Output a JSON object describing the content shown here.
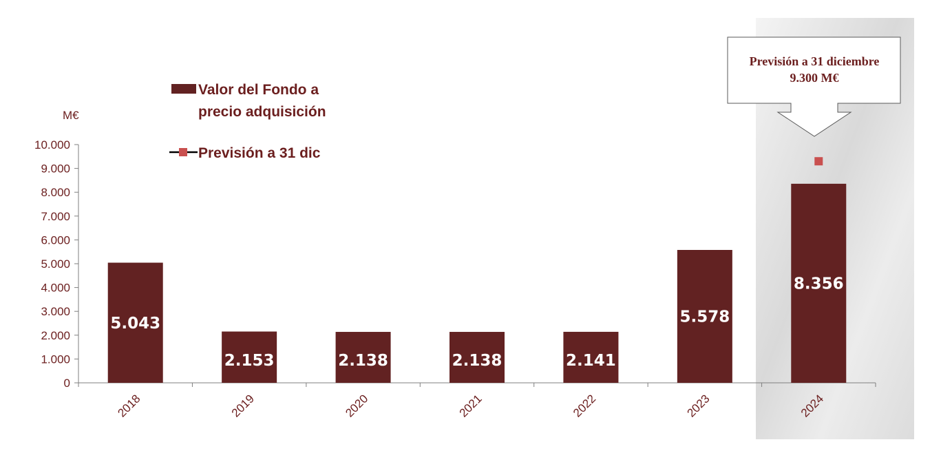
{
  "chart_data": {
    "type": "bar",
    "unit_label": "M€",
    "categories": [
      "2018",
      "2019",
      "2020",
      "2021",
      "2022",
      "2023",
      "2024"
    ],
    "series": [
      {
        "name": "Valor del Fondo a precio adquisición",
        "values": [
          5043,
          2153,
          2138,
          2138,
          2141,
          5578,
          8356
        ],
        "value_labels": [
          "5.043",
          "2.153",
          "2.138",
          "2.138",
          "2.141",
          "5.578",
          "8.356"
        ],
        "color": "#622222"
      },
      {
        "name": "Previsión a 31 dic",
        "type": "marker",
        "points": [
          {
            "x": "2024",
            "y": 9300
          }
        ],
        "color": "#c9504f"
      }
    ],
    "legend": {
      "entries": [
        {
          "lines": [
            "Valor del Fondo a",
            "precio adquisición"
          ]
        },
        {
          "lines": [
            "Previsión a 31 dic"
          ]
        }
      ],
      "placement": "top-left"
    },
    "ylim": [
      0,
      10000
    ],
    "yticks": [
      0,
      1000,
      2000,
      3000,
      4000,
      5000,
      6000,
      7000,
      8000,
      9000,
      10000
    ],
    "ytick_labels": [
      "0",
      "1.000",
      "2.000",
      "3.000",
      "4.000",
      "5.000",
      "6.000",
      "7.000",
      "8.000",
      "9.000",
      "10.000"
    ],
    "grid": false,
    "annotation": {
      "lines": [
        "Previsión a 31 diciembre",
        "9.300 M€"
      ],
      "target_category": "2024"
    },
    "highlight_category": "2024",
    "colors": {
      "bar": "#622222",
      "text": "#6b1e1e",
      "marker": "#c9504f",
      "highlight_bg": "#e9e9e9"
    }
  }
}
